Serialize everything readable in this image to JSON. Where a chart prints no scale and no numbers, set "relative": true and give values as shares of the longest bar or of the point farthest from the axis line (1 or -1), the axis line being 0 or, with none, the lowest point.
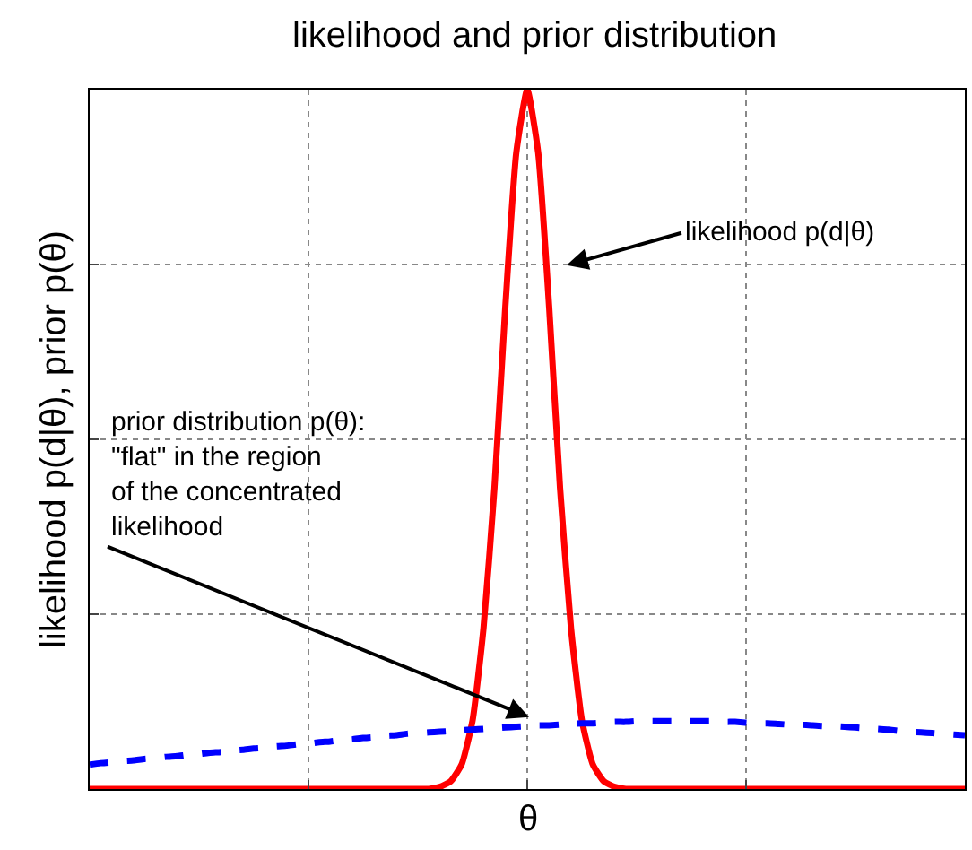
{
  "chart_data": {
    "type": "line",
    "title": "likelihood and prior distribution",
    "ylabel": "likelihood p(d|θ), prior p(θ)",
    "relative": true,
    "categories": [
      null,
      null,
      null,
      null,
      null,
      null,
      null,
      null,
      null,
      null,
      null,
      null,
      null,
      null,
      null,
      null,
      null,
      null,
      null,
      null,
      null,
      null,
      null,
      null,
      null,
      null,
      null,
      null,
      null,
      null,
      null,
      null,
      null,
      null,
      null,
      null,
      null,
      null,
      null,
      null,
      null,
      null,
      null,
      null,
      null,
      null,
      null,
      null,
      null,
      null,
      null,
      null,
      null,
      null,
      null,
      null,
      null,
      null,
      null,
      null,
      null,
      null,
      null,
      null,
      null,
      null,
      null,
      null,
      null,
      null,
      null,
      null,
      null,
      null,
      null,
      null,
      null,
      null,
      null,
      null,
      null
    ],
    "grid": true,
    "marker": "none",
    "series": [
      {
        "color": "#ff0000",
        "line_style": "solid",
        "values": [
          0,
          0,
          0,
          0,
          0,
          0,
          0,
          0,
          0,
          0,
          0,
          0,
          0,
          0,
          0,
          0,
          0,
          0,
          0,
          0,
          0,
          0,
          0,
          0,
          0,
          0,
          0,
          0,
          0,
          0,
          0,
          0,
          0.003,
          0.011,
          0.035,
          0.098,
          0.23,
          0.43,
          0.69,
          0.91,
          1,
          0.91,
          0.69,
          0.43,
          0.23,
          0.098,
          0.035,
          0.011,
          0.003,
          0,
          0,
          0,
          0,
          0,
          0,
          0,
          0,
          0,
          0,
          0,
          0,
          0,
          0,
          0,
          0,
          0,
          0,
          0,
          0,
          0,
          0,
          0,
          0,
          0,
          0,
          0,
          0,
          0,
          0,
          0,
          0
        ]
      },
      {
        "color": "#0000ff",
        "line_style": "dashed",
        "values": [
          0.035,
          0.037,
          0.038,
          0.04,
          0.041,
          0.043,
          0.044,
          0.046,
          0.047,
          0.049,
          0.05,
          0.052,
          0.053,
          0.055,
          0.056,
          0.058,
          0.059,
          0.061,
          0.062,
          0.064,
          0.065,
          0.067,
          0.068,
          0.07,
          0.071,
          0.073,
          0.074,
          0.076,
          0.077,
          0.079,
          0.08,
          0.081,
          0.082,
          0.083,
          0.084,
          0.085,
          0.086,
          0.087,
          0.088,
          0.089,
          0.09,
          0.091,
          0.091,
          0.092,
          0.093,
          0.094,
          0.094,
          0.095,
          0.096,
          0.096,
          0.097,
          0.097,
          0.097,
          0.097,
          0.097,
          0.097,
          0.097,
          0.097,
          0.096,
          0.096,
          0.095,
          0.094,
          0.094,
          0.093,
          0.092,
          0.092,
          0.091,
          0.09,
          0.09,
          0.089,
          0.088,
          0.087,
          0.086,
          0.085,
          0.083,
          0.082,
          0.081,
          0.08,
          0.079,
          0.078,
          0.077
        ]
      }
    ],
    "annotations": [
      "likelihood p(d|θ)",
      "prior distribution p(θ):\n\"flat\" in the region\nof the concentrated\nlikelihood",
      "θ"
    ]
  }
}
